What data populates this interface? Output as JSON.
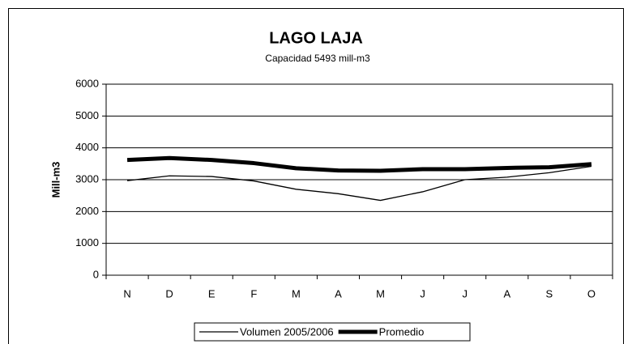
{
  "chart_data": {
    "type": "line",
    "title": "LAGO LAJA",
    "subtitle": "Capacidad  5493 mill-m3",
    "y_label": "Mill-m3",
    "categories": [
      "N",
      "D",
      "E",
      "F",
      "M",
      "A",
      "M",
      "J",
      "J",
      "A",
      "S",
      "O"
    ],
    "series": [
      {
        "name": "Volumen  2005/2006",
        "color": "#000000",
        "values": [
          2970,
          3120,
          3100,
          2960,
          2700,
          2560,
          2350,
          2620,
          3000,
          3080,
          3220,
          3420
        ]
      },
      {
        "name": "Promedio",
        "color": "#000000",
        "values": [
          3620,
          3680,
          3620,
          3520,
          3360,
          3290,
          3280,
          3330,
          3330,
          3370,
          3390,
          3490
        ]
      }
    ],
    "ylim": [
      0,
      6000
    ],
    "yticks": [
      0,
      1000,
      2000,
      3000,
      4000,
      5000,
      6000
    ],
    "grid": true,
    "legend": "bottom"
  }
}
